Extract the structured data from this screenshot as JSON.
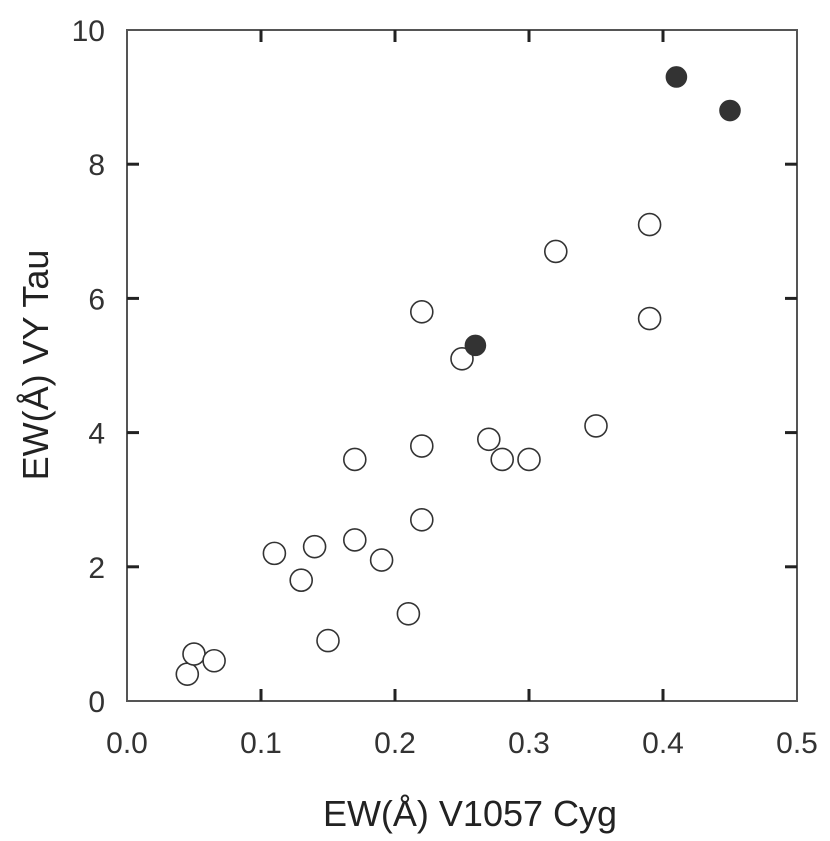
{
  "chart_data": {
    "type": "scatter",
    "xlabel": "EW(Å) V1057 Cyg",
    "ylabel": "EW(Å) VY Tau",
    "xlim": [
      0.0,
      0.5
    ],
    "ylim": [
      0,
      10
    ],
    "xticks": [
      "0.0",
      "0.1",
      "0.2",
      "0.3",
      "0.4",
      "0.5"
    ],
    "yticks": [
      "0",
      "2",
      "4",
      "6",
      "8",
      "10"
    ],
    "grid": false,
    "series": [
      {
        "marker": "open-circle",
        "color": "#333333",
        "points": [
          {
            "x": 0.045,
            "y": 0.4
          },
          {
            "x": 0.05,
            "y": 0.7
          },
          {
            "x": 0.065,
            "y": 0.6
          },
          {
            "x": 0.11,
            "y": 2.2
          },
          {
            "x": 0.13,
            "y": 1.8
          },
          {
            "x": 0.14,
            "y": 2.3
          },
          {
            "x": 0.15,
            "y": 0.9
          },
          {
            "x": 0.17,
            "y": 3.6
          },
          {
            "x": 0.17,
            "y": 2.4
          },
          {
            "x": 0.19,
            "y": 2.1
          },
          {
            "x": 0.21,
            "y": 1.3
          },
          {
            "x": 0.22,
            "y": 5.8
          },
          {
            "x": 0.22,
            "y": 3.8
          },
          {
            "x": 0.22,
            "y": 2.7
          },
          {
            "x": 0.25,
            "y": 5.1
          },
          {
            "x": 0.27,
            "y": 3.9
          },
          {
            "x": 0.28,
            "y": 3.6
          },
          {
            "x": 0.3,
            "y": 3.6
          },
          {
            "x": 0.32,
            "y": 6.7
          },
          {
            "x": 0.35,
            "y": 4.1
          },
          {
            "x": 0.39,
            "y": 7.1
          },
          {
            "x": 0.39,
            "y": 5.7
          }
        ]
      },
      {
        "marker": "filled-circle",
        "color": "#333333",
        "points": [
          {
            "x": 0.26,
            "y": 5.3
          },
          {
            "x": 0.41,
            "y": 9.3
          },
          {
            "x": 0.45,
            "y": 8.8
          }
        ]
      }
    ]
  }
}
